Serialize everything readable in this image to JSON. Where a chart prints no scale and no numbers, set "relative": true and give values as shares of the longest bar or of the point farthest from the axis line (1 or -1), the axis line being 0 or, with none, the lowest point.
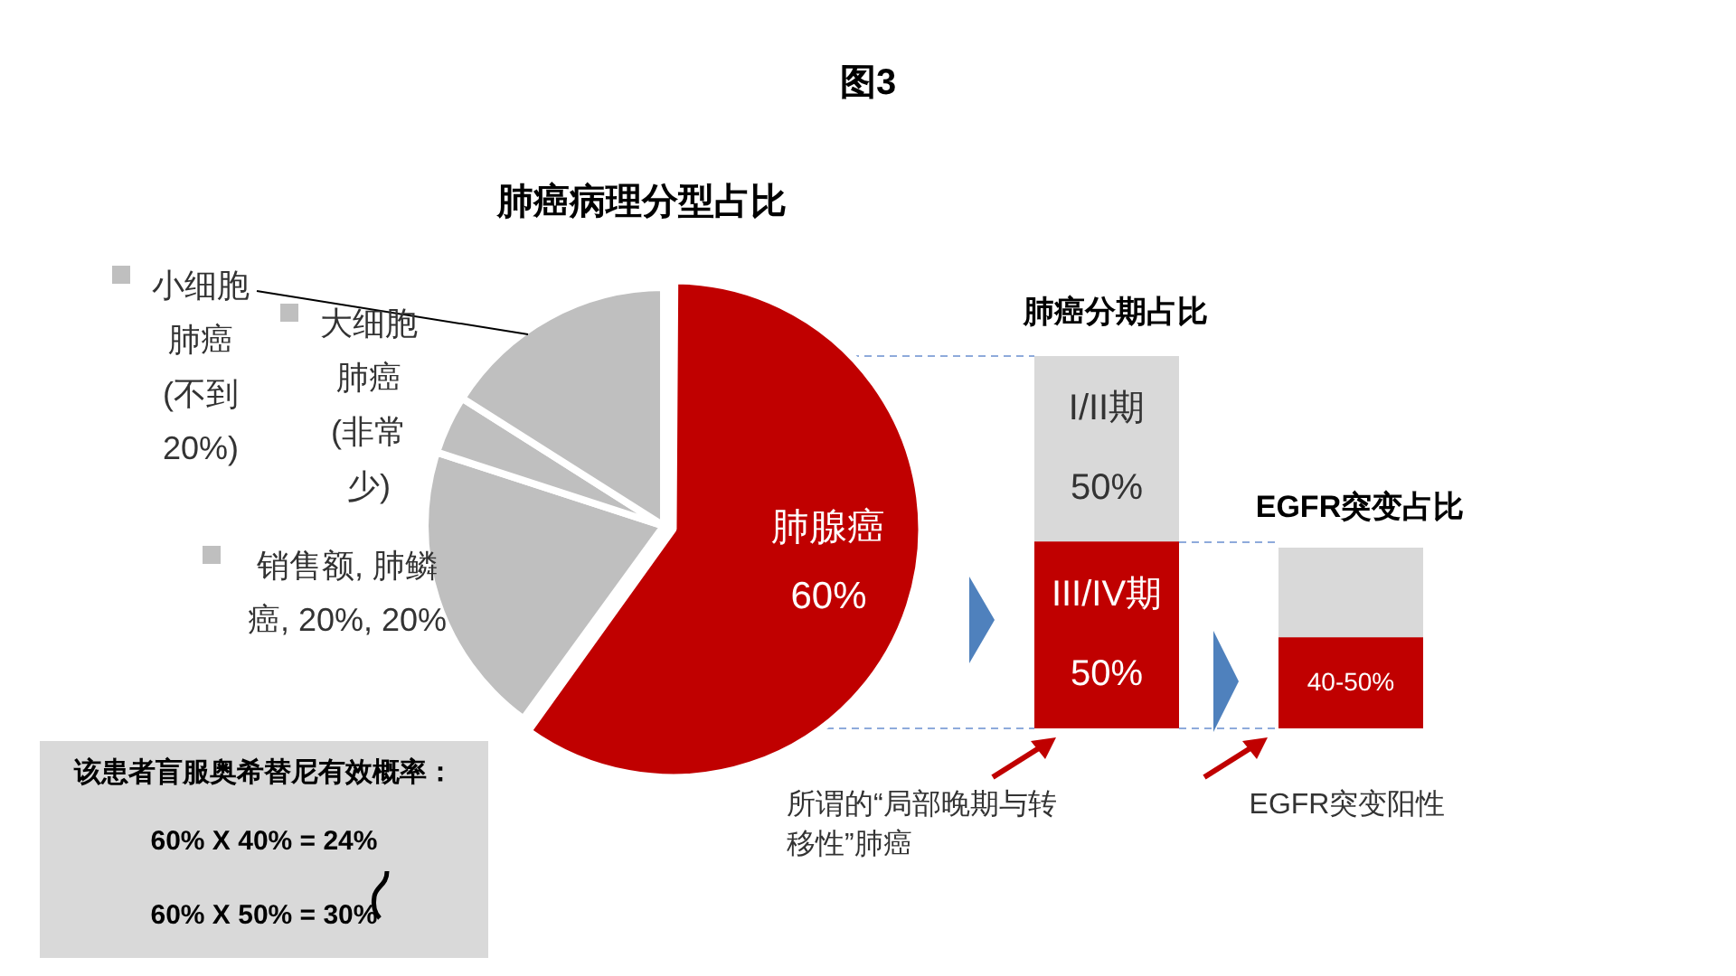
{
  "chart_data": [
    {
      "type": "pie",
      "title": "肺癌病理分型占比",
      "categories": [
        "肺腺癌",
        "销售额, 肺鳞癌, 20%, 20%",
        "大细胞肺癌 (非常少)",
        "小细胞肺癌 (不到20%)"
      ],
      "values": [
        60,
        20,
        4,
        16
      ],
      "colors": [
        "#c00000",
        "#bfbfbf",
        "#bfbfbf",
        "#bfbfbf"
      ],
      "legend": "left",
      "value_labels": [
        "60%",
        null,
        null,
        null
      ],
      "annotations": [
        "图3",
        "该患者盲服奥希替尼有效概率：",
        "60% X 40% = 24%",
        "60% X 50% = 30%"
      ]
    },
    {
      "type": "bar",
      "title": "肺癌分期占比",
      "stacked": true,
      "tick_labels": false,
      "categories": [
        null
      ],
      "series": [
        {
          "name": "III/IV期",
          "color": "#c00000",
          "values": [
            50
          ],
          "value_labels": [
            "50%"
          ]
        },
        {
          "name": "I/II期",
          "color": "#d9d9d9",
          "values": [
            50
          ],
          "value_labels": [
            "50%"
          ]
        }
      ],
      "annotations": [
        "所谓的“局部晚期与转移性”肺癌"
      ]
    },
    {
      "type": "bar",
      "title": "EGFR突变占比",
      "stacked": true,
      "relative": true,
      "categories": [
        null
      ],
      "series": [
        {
          "color": "#c00000",
          "values": [
            0.5
          ]
        },
        {
          "color": "#d9d9d9",
          "values": [
            0.5
          ]
        }
      ],
      "annotations": [
        "EGFR突变阳性",
        "40-50%"
      ]
    }
  ]
}
